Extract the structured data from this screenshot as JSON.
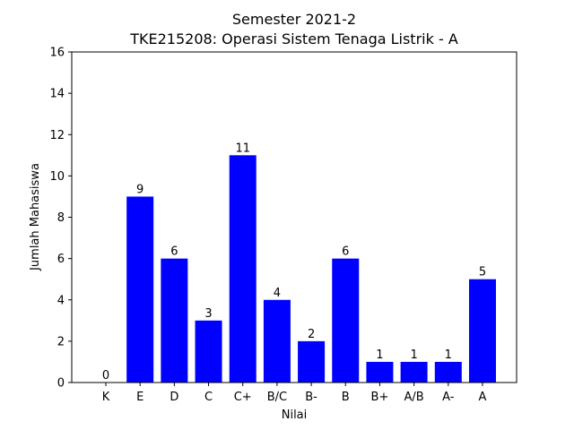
{
  "chart_data": {
    "type": "bar",
    "title_line1": "Semester 2021-2",
    "title_line2": "TKE215208: Operasi Sistem Tenaga Listrik - A",
    "xlabel": "Nilai",
    "ylabel": "Jumlah Mahasiswa",
    "categories": [
      "K",
      "E",
      "D",
      "C",
      "C+",
      "B/C",
      "B-",
      "B",
      "B+",
      "A/B",
      "A-",
      "A"
    ],
    "values": [
      0,
      9,
      6,
      3,
      11,
      4,
      2,
      6,
      1,
      1,
      1,
      5
    ],
    "ylim": [
      0,
      16
    ],
    "yticks": [
      0,
      2,
      4,
      6,
      8,
      10,
      12,
      14,
      16
    ],
    "bar_color": "#0000ff",
    "grid": false,
    "legend": "none"
  }
}
